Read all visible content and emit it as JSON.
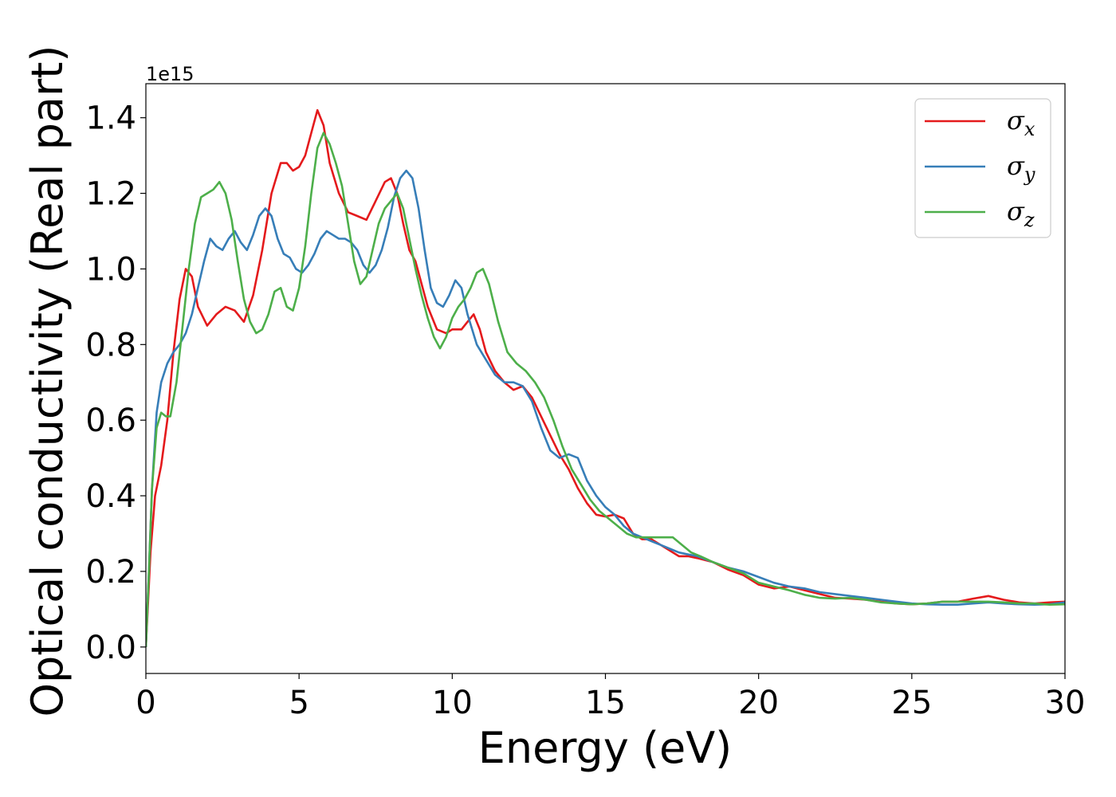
{
  "chart_data": {
    "type": "line",
    "title": "",
    "xlabel": "Energy (eV)",
    "ylabel": "Optical conductivity (Real part)",
    "y_offset_label": "1e15",
    "xlim": [
      0,
      30
    ],
    "ylim": [
      -0.07,
      1.49
    ],
    "x_ticks": [
      0,
      5,
      10,
      15,
      20,
      25,
      30
    ],
    "y_ticks": [
      0.0,
      0.2,
      0.4,
      0.6,
      0.8,
      1.0,
      1.2,
      1.4
    ],
    "x_tick_labels": [
      "0",
      "5",
      "10",
      "15",
      "20",
      "25",
      "30"
    ],
    "y_tick_labels": [
      "0.0",
      "0.2",
      "0.4",
      "0.6",
      "0.8",
      "1.0",
      "1.2",
      "1.4"
    ],
    "grid": false,
    "legend_position": "top-right",
    "series": [
      {
        "name": "σ_x",
        "label_base": "σ",
        "label_sub": "x",
        "color": "#e41a1c",
        "x": [
          0,
          0.15,
          0.3,
          0.5,
          0.7,
          0.9,
          1.1,
          1.3,
          1.5,
          1.7,
          2.0,
          2.3,
          2.6,
          2.9,
          3.2,
          3.5,
          3.8,
          4.1,
          4.4,
          4.6,
          4.8,
          5.0,
          5.2,
          5.4,
          5.6,
          5.8,
          6.0,
          6.3,
          6.6,
          6.9,
          7.2,
          7.5,
          7.8,
          8.0,
          8.2,
          8.4,
          8.6,
          8.8,
          9.0,
          9.2,
          9.5,
          9.8,
          10.0,
          10.3,
          10.5,
          10.7,
          10.9,
          11.1,
          11.4,
          11.7,
          12.0,
          12.3,
          12.6,
          12.9,
          13.2,
          13.5,
          13.8,
          14.1,
          14.4,
          14.7,
          15.0,
          15.3,
          15.6,
          15.9,
          16.2,
          16.5,
          16.8,
          17.1,
          17.4,
          17.7,
          18.0,
          18.5,
          19.0,
          19.5,
          20.0,
          20.5,
          21.0,
          21.5,
          22.0,
          22.5,
          23.0,
          23.5,
          24.0,
          24.5,
          25.0,
          25.5,
          26.0,
          26.5,
          27.0,
          27.5,
          28.0,
          28.5,
          29.0,
          29.5,
          30.0
        ],
        "y": [
          0,
          0.25,
          0.4,
          0.48,
          0.6,
          0.78,
          0.92,
          1.0,
          0.98,
          0.9,
          0.85,
          0.88,
          0.9,
          0.89,
          0.86,
          0.93,
          1.05,
          1.2,
          1.28,
          1.28,
          1.26,
          1.27,
          1.3,
          1.36,
          1.42,
          1.38,
          1.28,
          1.2,
          1.15,
          1.14,
          1.13,
          1.18,
          1.23,
          1.24,
          1.2,
          1.12,
          1.05,
          1.02,
          0.96,
          0.9,
          0.84,
          0.83,
          0.84,
          0.84,
          0.86,
          0.88,
          0.84,
          0.78,
          0.73,
          0.7,
          0.68,
          0.69,
          0.66,
          0.61,
          0.56,
          0.51,
          0.47,
          0.42,
          0.38,
          0.35,
          0.345,
          0.35,
          0.34,
          0.3,
          0.285,
          0.285,
          0.27,
          0.255,
          0.24,
          0.24,
          0.235,
          0.225,
          0.205,
          0.19,
          0.165,
          0.155,
          0.16,
          0.15,
          0.14,
          0.13,
          0.128,
          0.125,
          0.12,
          0.115,
          0.113,
          0.115,
          0.12,
          0.12,
          0.128,
          0.135,
          0.125,
          0.118,
          0.115,
          0.118,
          0.12
        ]
      },
      {
        "name": "σ_y",
        "label_base": "σ",
        "label_sub": "y",
        "color": "#377eb8",
        "x": [
          0,
          0.1,
          0.2,
          0.35,
          0.5,
          0.7,
          0.9,
          1.1,
          1.3,
          1.5,
          1.7,
          1.9,
          2.1,
          2.3,
          2.5,
          2.7,
          2.9,
          3.1,
          3.3,
          3.5,
          3.7,
          3.9,
          4.1,
          4.3,
          4.5,
          4.7,
          4.9,
          5.1,
          5.3,
          5.5,
          5.7,
          5.9,
          6.1,
          6.3,
          6.5,
          6.7,
          6.9,
          7.1,
          7.3,
          7.5,
          7.7,
          7.9,
          8.1,
          8.3,
          8.5,
          8.7,
          8.9,
          9.1,
          9.3,
          9.5,
          9.7,
          9.9,
          10.1,
          10.3,
          10.5,
          10.8,
          11.1,
          11.4,
          11.7,
          12.0,
          12.3,
          12.6,
          12.9,
          13.2,
          13.5,
          13.8,
          14.1,
          14.4,
          14.7,
          15.0,
          15.3,
          15.6,
          15.9,
          16.2,
          16.5,
          16.8,
          17.1,
          17.4,
          17.7,
          18.0,
          18.5,
          19.0,
          19.5,
          20.0,
          20.5,
          21.0,
          21.5,
          22.0,
          22.5,
          23.0,
          23.5,
          24.0,
          24.5,
          25.0,
          25.5,
          26.0,
          26.5,
          27.0,
          27.5,
          28.0,
          28.5,
          29.0,
          29.5,
          30.0
        ],
        "y": [
          0,
          0.2,
          0.42,
          0.62,
          0.7,
          0.75,
          0.78,
          0.8,
          0.83,
          0.88,
          0.95,
          1.02,
          1.08,
          1.06,
          1.05,
          1.08,
          1.1,
          1.07,
          1.05,
          1.09,
          1.14,
          1.16,
          1.14,
          1.08,
          1.04,
          1.03,
          1.0,
          0.99,
          1.01,
          1.04,
          1.08,
          1.1,
          1.09,
          1.08,
          1.08,
          1.07,
          1.05,
          1.01,
          0.99,
          1.01,
          1.05,
          1.11,
          1.19,
          1.24,
          1.26,
          1.24,
          1.16,
          1.05,
          0.95,
          0.91,
          0.9,
          0.93,
          0.97,
          0.95,
          0.88,
          0.8,
          0.76,
          0.72,
          0.7,
          0.7,
          0.69,
          0.65,
          0.58,
          0.52,
          0.5,
          0.51,
          0.5,
          0.44,
          0.4,
          0.37,
          0.35,
          0.32,
          0.3,
          0.29,
          0.28,
          0.27,
          0.26,
          0.25,
          0.245,
          0.24,
          0.225,
          0.21,
          0.2,
          0.185,
          0.17,
          0.16,
          0.155,
          0.145,
          0.14,
          0.135,
          0.13,
          0.125,
          0.12,
          0.115,
          0.113,
          0.112,
          0.112,
          0.115,
          0.118,
          0.115,
          0.113,
          0.112,
          0.113,
          0.118
        ]
      },
      {
        "name": "σ_z",
        "label_base": "σ",
        "label_sub": "z",
        "color": "#4daf4a",
        "x": [
          0,
          0.1,
          0.2,
          0.35,
          0.5,
          0.65,
          0.8,
          1.0,
          1.2,
          1.4,
          1.6,
          1.8,
          2.0,
          2.2,
          2.4,
          2.6,
          2.8,
          3.0,
          3.2,
          3.4,
          3.6,
          3.8,
          4.0,
          4.2,
          4.4,
          4.6,
          4.8,
          5.0,
          5.2,
          5.4,
          5.6,
          5.8,
          6.0,
          6.2,
          6.4,
          6.6,
          6.8,
          7.0,
          7.2,
          7.4,
          7.6,
          7.8,
          8.0,
          8.2,
          8.4,
          8.6,
          8.8,
          9.0,
          9.2,
          9.4,
          9.6,
          9.8,
          10.0,
          10.2,
          10.4,
          10.6,
          10.8,
          11.0,
          11.2,
          11.5,
          11.8,
          12.1,
          12.4,
          12.7,
          13.0,
          13.3,
          13.6,
          13.9,
          14.2,
          14.5,
          14.8,
          15.1,
          15.4,
          15.7,
          16.0,
          16.3,
          16.6,
          16.9,
          17.2,
          17.5,
          17.8,
          18.1,
          18.5,
          19.0,
          19.5,
          20.0,
          20.5,
          21.0,
          21.5,
          22.0,
          22.5,
          23.0,
          23.5,
          24.0,
          24.5,
          25.0,
          25.5,
          26.0,
          26.5,
          27.0,
          27.5,
          28.0,
          28.5,
          29.0,
          29.5,
          30.0
        ],
        "y": [
          0,
          0.2,
          0.42,
          0.58,
          0.62,
          0.61,
          0.61,
          0.7,
          0.85,
          1.0,
          1.12,
          1.19,
          1.2,
          1.21,
          1.23,
          1.2,
          1.13,
          1.02,
          0.92,
          0.86,
          0.83,
          0.84,
          0.88,
          0.94,
          0.95,
          0.9,
          0.89,
          0.95,
          1.06,
          1.2,
          1.32,
          1.36,
          1.33,
          1.28,
          1.22,
          1.12,
          1.02,
          0.96,
          0.98,
          1.05,
          1.12,
          1.16,
          1.18,
          1.2,
          1.16,
          1.08,
          1.0,
          0.93,
          0.87,
          0.82,
          0.79,
          0.82,
          0.87,
          0.9,
          0.92,
          0.95,
          0.99,
          1.0,
          0.96,
          0.86,
          0.78,
          0.75,
          0.73,
          0.7,
          0.66,
          0.6,
          0.53,
          0.47,
          0.43,
          0.39,
          0.36,
          0.34,
          0.32,
          0.3,
          0.29,
          0.29,
          0.29,
          0.29,
          0.29,
          0.27,
          0.25,
          0.24,
          0.225,
          0.21,
          0.195,
          0.17,
          0.16,
          0.15,
          0.138,
          0.13,
          0.128,
          0.13,
          0.125,
          0.118,
          0.115,
          0.113,
          0.115,
          0.12,
          0.12,
          0.12,
          0.12,
          0.118,
          0.115,
          0.115,
          0.112,
          0.113
        ]
      }
    ]
  }
}
